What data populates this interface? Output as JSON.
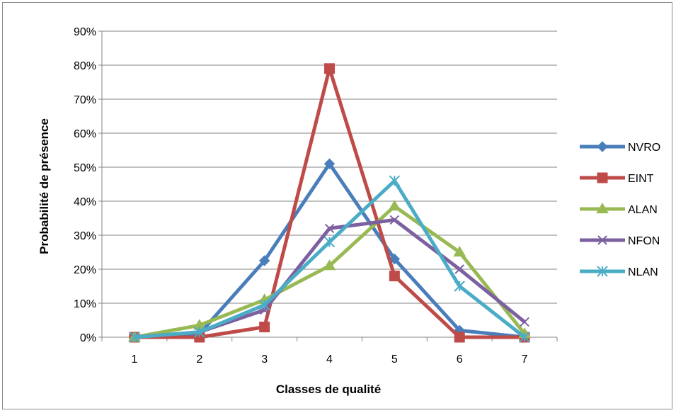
{
  "chart_data": {
    "type": "line",
    "title": "",
    "xlabel": "Classes de qualité",
    "ylabel": "Probabilité de présence",
    "categories": [
      "1",
      "2",
      "3",
      "4",
      "5",
      "6",
      "7"
    ],
    "ylim": [
      0,
      0.9
    ],
    "yticks": [
      "0%",
      "10%",
      "20%",
      "30%",
      "40%",
      "50%",
      "60%",
      "70%",
      "80%",
      "90%"
    ],
    "grid": "horizontal",
    "legend_position": "right",
    "series": [
      {
        "name": "NVRO",
        "color": "#4a7ebb",
        "marker": "diamond",
        "values": [
          0,
          0.01,
          0.225,
          0.51,
          0.23,
          0.02,
          0
        ]
      },
      {
        "name": "EINT",
        "color": "#be4b48",
        "marker": "square",
        "values": [
          0,
          0,
          0.03,
          0.79,
          0.18,
          0,
          0
        ]
      },
      {
        "name": "ALAN",
        "color": "#98b954",
        "marker": "triangle",
        "values": [
          0,
          0.035,
          0.11,
          0.21,
          0.385,
          0.25,
          0.01
        ]
      },
      {
        "name": "NFON",
        "color": "#7d60a0",
        "marker": "x",
        "values": [
          0,
          0.015,
          0.08,
          0.32,
          0.345,
          0.2,
          0.045
        ]
      },
      {
        "name": "NLAN",
        "color": "#4bacc6",
        "marker": "star",
        "values": [
          0,
          0.015,
          0.095,
          0.28,
          0.46,
          0.15,
          0
        ]
      }
    ]
  }
}
